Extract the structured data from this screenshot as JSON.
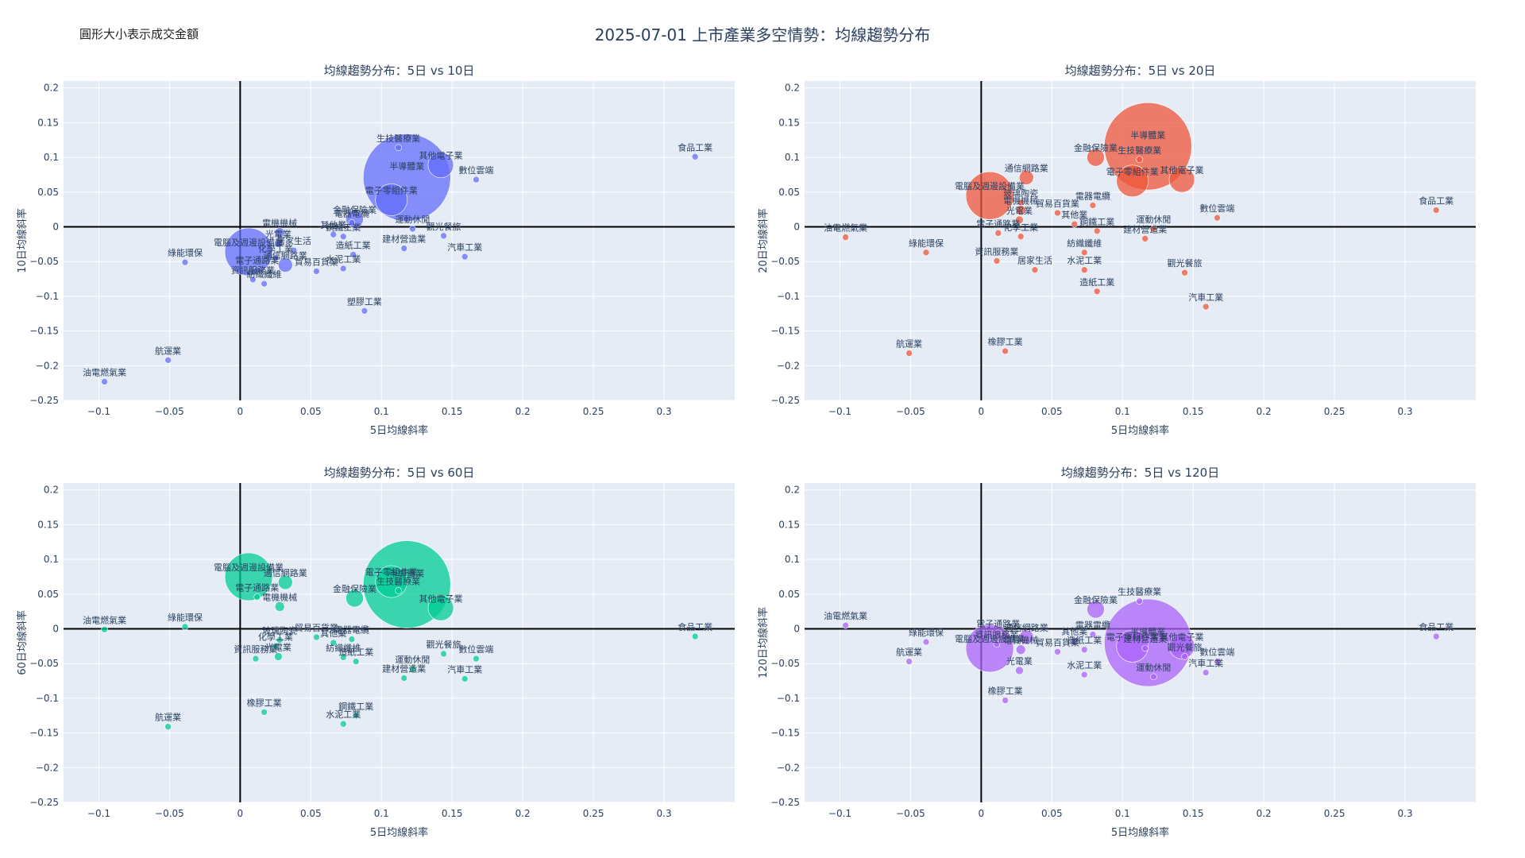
{
  "page": {
    "title": "2025-07-01 上市產業多空情勢：均線趨勢分布",
    "note": "圓形大小表示成交金額"
  },
  "colors": {
    "plot_bg": "#e5ecf6",
    "grid": "#ffffff",
    "axis_zero": "#000000",
    "text": "#2a3f5f",
    "series": [
      "#636efa",
      "#ef553b",
      "#00cc96",
      "#ab63fa"
    ]
  },
  "chart_data": [
    {
      "type": "scatter",
      "title": "均線趨勢分布：5日 vs 10日",
      "xlabel": "5日均線斜率",
      "ylabel": "10日均線斜率",
      "xlim": [
        -0.125,
        0.35
      ],
      "ylim": [
        -0.25,
        0.21
      ],
      "xticks": [
        -0.1,
        -0.05,
        0,
        0.05,
        0.1,
        0.15,
        0.2,
        0.25,
        0.3
      ],
      "yticks": [
        -0.25,
        -0.2,
        -0.15,
        -0.1,
        -0.05,
        0,
        0.05,
        0.1,
        0.15,
        0.2
      ],
      "grid": true,
      "color": "#636efa",
      "points": [
        {
          "label": "半導體業",
          "x": 0.118,
          "y": 0.071,
          "size": 55
        },
        {
          "label": "電子零組件業",
          "x": 0.107,
          "y": 0.039,
          "size": 20
        },
        {
          "label": "電腦及週邊設備業",
          "x": 0.006,
          "y": -0.036,
          "size": 30
        },
        {
          "label": "其他電子業",
          "x": 0.142,
          "y": 0.089,
          "size": 16
        },
        {
          "label": "生技醫療業",
          "x": 0.112,
          "y": 0.114,
          "size": 4
        },
        {
          "label": "金融保險業",
          "x": 0.081,
          "y": 0.011,
          "size": 11
        },
        {
          "label": "數位雲端",
          "x": 0.167,
          "y": 0.068,
          "size": 4
        },
        {
          "label": "食品工業",
          "x": 0.322,
          "y": 0.101,
          "size": 4
        },
        {
          "label": "電機機械",
          "x": 0.028,
          "y": -0.008,
          "size": 6
        },
        {
          "label": "電器電纜",
          "x": 0.079,
          "y": 0.006,
          "size": 4
        },
        {
          "label": "其他業",
          "x": 0.066,
          "y": -0.011,
          "size": 4
        },
        {
          "label": "鋼鐵工業",
          "x": 0.073,
          "y": -0.014,
          "size": 4
        },
        {
          "label": "運動休閒",
          "x": 0.122,
          "y": -0.003,
          "size": 4
        },
        {
          "label": "觀光餐旅",
          "x": 0.144,
          "y": -0.013,
          "size": 4
        },
        {
          "label": "建材營造業",
          "x": 0.116,
          "y": -0.031,
          "size": 4
        },
        {
          "label": "汽車工業",
          "x": 0.159,
          "y": -0.043,
          "size": 4
        },
        {
          "label": "造紙工業",
          "x": 0.08,
          "y": -0.04,
          "size": 4
        },
        {
          "label": "水泥工業",
          "x": 0.073,
          "y": -0.06,
          "size": 4
        },
        {
          "label": "貿易百貨業",
          "x": 0.054,
          "y": -0.064,
          "size": 4
        },
        {
          "label": "通信網路業",
          "x": 0.032,
          "y": -0.055,
          "size": 9
        },
        {
          "label": "光電業",
          "x": 0.027,
          "y": -0.024,
          "size": 5
        },
        {
          "label": "居家生活",
          "x": 0.038,
          "y": -0.034,
          "size": 4
        },
        {
          "label": "資訊服務業",
          "x": 0.009,
          "y": -0.076,
          "size": 4
        },
        {
          "label": "電子通路業",
          "x": 0.012,
          "y": -0.062,
          "size": 4
        },
        {
          "label": "紡織纖維",
          "x": 0.017,
          "y": -0.082,
          "size": 4
        },
        {
          "label": "化學工業",
          "x": 0.025,
          "y": -0.045,
          "size": 4
        },
        {
          "label": "塑膠工業",
          "x": 0.088,
          "y": -0.121,
          "size": 4
        },
        {
          "label": "綠能環保",
          "x": -0.039,
          "y": -0.051,
          "size": 4
        },
        {
          "label": "航運業",
          "x": -0.051,
          "y": -0.192,
          "size": 4
        },
        {
          "label": "油電燃氣業",
          "x": -0.096,
          "y": -0.223,
          "size": 4
        }
      ]
    },
    {
      "type": "scatter",
      "title": "均線趨勢分布：5日 vs 20日",
      "xlabel": "5日均線斜率",
      "ylabel": "20日均線斜率",
      "xlim": [
        -0.125,
        0.35
      ],
      "ylim": [
        -0.25,
        0.21
      ],
      "xticks": [
        -0.1,
        -0.05,
        0,
        0.05,
        0.1,
        0.15,
        0.2,
        0.25,
        0.3
      ],
      "yticks": [
        -0.25,
        -0.2,
        -0.15,
        -0.1,
        -0.05,
        0,
        0.05,
        0.1,
        0.15,
        0.2
      ],
      "grid": true,
      "color": "#ef553b",
      "points": [
        {
          "label": "半導體業",
          "x": 0.118,
          "y": 0.116,
          "size": 55
        },
        {
          "label": "電子零組件業",
          "x": 0.107,
          "y": 0.066,
          "size": 20
        },
        {
          "label": "電腦及週邊設備業",
          "x": 0.006,
          "y": 0.045,
          "size": 30
        },
        {
          "label": "其他電子業",
          "x": 0.142,
          "y": 0.068,
          "size": 16
        },
        {
          "label": "生技醫療業",
          "x": 0.112,
          "y": 0.097,
          "size": 4
        },
        {
          "label": "金融保險業",
          "x": 0.081,
          "y": 0.1,
          "size": 11
        },
        {
          "label": "通信網路業",
          "x": 0.032,
          "y": 0.071,
          "size": 9
        },
        {
          "label": "數位雲端",
          "x": 0.167,
          "y": 0.013,
          "size": 4
        },
        {
          "label": "食品工業",
          "x": 0.322,
          "y": 0.024,
          "size": 4
        },
        {
          "label": "電器電纜",
          "x": 0.079,
          "y": 0.031,
          "size": 4
        },
        {
          "label": "玻璃陶瓷",
          "x": 0.028,
          "y": 0.035,
          "size": 4
        },
        {
          "label": "電機機械",
          "x": 0.028,
          "y": 0.024,
          "size": 6
        },
        {
          "label": "貿易百貨業",
          "x": 0.054,
          "y": 0.02,
          "size": 4
        },
        {
          "label": "光電業",
          "x": 0.027,
          "y": 0.01,
          "size": 5
        },
        {
          "label": "其他業",
          "x": 0.066,
          "y": 0.004,
          "size": 4
        },
        {
          "label": "鋼鐵工業",
          "x": 0.082,
          "y": -0.006,
          "size": 4
        },
        {
          "label": "運動休閒",
          "x": 0.122,
          "y": -0.003,
          "size": 4
        },
        {
          "label": "建材營造業",
          "x": 0.116,
          "y": -0.017,
          "size": 4
        },
        {
          "label": "電子通路業",
          "x": 0.012,
          "y": -0.009,
          "size": 4
        },
        {
          "label": "化學工業",
          "x": 0.028,
          "y": -0.014,
          "size": 4
        },
        {
          "label": "紡織纖維",
          "x": 0.073,
          "y": -0.037,
          "size": 4
        },
        {
          "label": "資訊服務業",
          "x": 0.011,
          "y": -0.049,
          "size": 4
        },
        {
          "label": "居家生活",
          "x": 0.038,
          "y": -0.062,
          "size": 4
        },
        {
          "label": "水泥工業",
          "x": 0.073,
          "y": -0.062,
          "size": 4
        },
        {
          "label": "觀光餐旅",
          "x": 0.144,
          "y": -0.066,
          "size": 4
        },
        {
          "label": "造紙工業",
          "x": 0.082,
          "y": -0.093,
          "size": 4
        },
        {
          "label": "汽車工業",
          "x": 0.159,
          "y": -0.115,
          "size": 4
        },
        {
          "label": "綠能環保",
          "x": -0.039,
          "y": -0.037,
          "size": 4
        },
        {
          "label": "油電燃氣業",
          "x": -0.096,
          "y": -0.015,
          "size": 4
        },
        {
          "label": "航運業",
          "x": -0.051,
          "y": -0.182,
          "size": 4
        },
        {
          "label": "橡膠工業",
          "x": 0.017,
          "y": -0.179,
          "size": 4
        }
      ]
    },
    {
      "type": "scatter",
      "title": "均線趨勢分布：5日 vs 60日",
      "xlabel": "5日均線斜率",
      "ylabel": "60日均線斜率",
      "xlim": [
        -0.125,
        0.35
      ],
      "ylim": [
        -0.25,
        0.21
      ],
      "xticks": [
        -0.1,
        -0.05,
        0,
        0.05,
        0.1,
        0.15,
        0.2,
        0.25,
        0.3
      ],
      "yticks": [
        -0.25,
        -0.2,
        -0.15,
        -0.1,
        -0.05,
        0,
        0.05,
        0.1,
        0.15,
        0.2
      ],
      "grid": true,
      "color": "#00cc96",
      "points": [
        {
          "label": "半導體業",
          "x": 0.118,
          "y": 0.064,
          "size": 55
        },
        {
          "label": "電子零組件業",
          "x": 0.107,
          "y": 0.068,
          "size": 20
        },
        {
          "label": "電腦及週邊設備業",
          "x": 0.006,
          "y": 0.075,
          "size": 30
        },
        {
          "label": "其他電子業",
          "x": 0.142,
          "y": 0.03,
          "size": 16
        },
        {
          "label": "生技醫療業",
          "x": 0.112,
          "y": 0.055,
          "size": 4
        },
        {
          "label": "金融保險業",
          "x": 0.081,
          "y": 0.044,
          "size": 11
        },
        {
          "label": "通信網路業",
          "x": 0.032,
          "y": 0.067,
          "size": 9
        },
        {
          "label": "電子通路業",
          "x": 0.012,
          "y": 0.046,
          "size": 4
        },
        {
          "label": "電機機械",
          "x": 0.028,
          "y": 0.032,
          "size": 6
        },
        {
          "label": "食品工業",
          "x": 0.322,
          "y": -0.011,
          "size": 4
        },
        {
          "label": "綠能環保",
          "x": -0.039,
          "y": 0.003,
          "size": 4
        },
        {
          "label": "油電燃氣業",
          "x": -0.096,
          "y": -0.001,
          "size": 4
        },
        {
          "label": "貿易百貨業",
          "x": 0.054,
          "y": -0.012,
          "size": 4
        },
        {
          "label": "電器電纜",
          "x": 0.079,
          "y": -0.015,
          "size": 4
        },
        {
          "label": "其他業",
          "x": 0.066,
          "y": -0.02,
          "size": 4
        },
        {
          "label": "玻璃陶瓷",
          "x": 0.028,
          "y": -0.016,
          "size": 4
        },
        {
          "label": "化學工業",
          "x": 0.025,
          "y": -0.025,
          "size": 4
        },
        {
          "label": "光電業",
          "x": 0.027,
          "y": -0.04,
          "size": 5
        },
        {
          "label": "資訊服務業",
          "x": 0.011,
          "y": -0.043,
          "size": 4
        },
        {
          "label": "紡織纖維",
          "x": 0.073,
          "y": -0.041,
          "size": 4
        },
        {
          "label": "造紙工業",
          "x": 0.082,
          "y": -0.047,
          "size": 4
        },
        {
          "label": "觀光餐旅",
          "x": 0.144,
          "y": -0.036,
          "size": 4
        },
        {
          "label": "數位雲端",
          "x": 0.167,
          "y": -0.043,
          "size": 4
        },
        {
          "label": "運動休閒",
          "x": 0.122,
          "y": -0.058,
          "size": 4
        },
        {
          "label": "建材營造業",
          "x": 0.116,
          "y": -0.071,
          "size": 4
        },
        {
          "label": "汽車工業",
          "x": 0.159,
          "y": -0.072,
          "size": 4
        },
        {
          "label": "橡膠工業",
          "x": 0.017,
          "y": -0.12,
          "size": 4
        },
        {
          "label": "鋼鐵工業",
          "x": 0.082,
          "y": -0.125,
          "size": 4
        },
        {
          "label": "水泥工業",
          "x": 0.073,
          "y": -0.137,
          "size": 4
        },
        {
          "label": "航運業",
          "x": -0.051,
          "y": -0.141,
          "size": 4
        }
      ]
    },
    {
      "type": "scatter",
      "title": "均線趨勢分布：5日 vs 120日",
      "xlabel": "5日均線斜率",
      "ylabel": "120日均線斜率",
      "xlim": [
        -0.125,
        0.35
      ],
      "ylim": [
        -0.25,
        0.21
      ],
      "xticks": [
        -0.1,
        -0.05,
        0,
        0.05,
        0.1,
        0.15,
        0.2,
        0.25,
        0.3
      ],
      "yticks": [
        -0.25,
        -0.2,
        -0.15,
        -0.1,
        -0.05,
        0,
        0.05,
        0.1,
        0.15,
        0.2
      ],
      "grid": true,
      "color": "#ab63fa",
      "points": [
        {
          "label": "半導體業",
          "x": 0.118,
          "y": -0.02,
          "size": 55
        },
        {
          "label": "電子零組件業",
          "x": 0.107,
          "y": -0.025,
          "size": 20
        },
        {
          "label": "電腦及週邊設備業",
          "x": 0.006,
          "y": -0.028,
          "size": 30
        },
        {
          "label": "其他電子業",
          "x": 0.142,
          "y": -0.025,
          "size": 16
        },
        {
          "label": "生技醫療業",
          "x": 0.112,
          "y": 0.04,
          "size": 4
        },
        {
          "label": "金融保險業",
          "x": 0.081,
          "y": 0.028,
          "size": 11
        },
        {
          "label": "食品工業",
          "x": 0.322,
          "y": -0.011,
          "size": 4
        },
        {
          "label": "油電燃氣業",
          "x": -0.096,
          "y": 0.005,
          "size": 4
        },
        {
          "label": "綠能環保",
          "x": -0.039,
          "y": -0.019,
          "size": 4
        },
        {
          "label": "航運業",
          "x": -0.051,
          "y": -0.047,
          "size": 4
        },
        {
          "label": "電子通路業",
          "x": 0.012,
          "y": -0.006,
          "size": 4
        },
        {
          "label": "通信網路業",
          "x": 0.032,
          "y": -0.012,
          "size": 9
        },
        {
          "label": "電機機械",
          "x": 0.028,
          "y": -0.03,
          "size": 6
        },
        {
          "label": "資訊服務業",
          "x": 0.011,
          "y": -0.022,
          "size": 4
        },
        {
          "label": "貿易百貨業",
          "x": 0.054,
          "y": -0.033,
          "size": 4
        },
        {
          "label": "其他業",
          "x": 0.066,
          "y": -0.017,
          "size": 4
        },
        {
          "label": "電器電纜",
          "x": 0.079,
          "y": -0.008,
          "size": 4
        },
        {
          "label": "造紙工業",
          "x": 0.073,
          "y": -0.03,
          "size": 4
        },
        {
          "label": "光電業",
          "x": 0.027,
          "y": -0.06,
          "size": 5
        },
        {
          "label": "水泥工業",
          "x": 0.073,
          "y": -0.066,
          "size": 4
        },
        {
          "label": "建材營造業",
          "x": 0.116,
          "y": -0.028,
          "size": 4
        },
        {
          "label": "觀光餐旅",
          "x": 0.144,
          "y": -0.04,
          "size": 4
        },
        {
          "label": "數位雲端",
          "x": 0.167,
          "y": -0.047,
          "size": 4
        },
        {
          "label": "汽車工業",
          "x": 0.159,
          "y": -0.063,
          "size": 4
        },
        {
          "label": "運動休閒",
          "x": 0.122,
          "y": -0.069,
          "size": 4
        },
        {
          "label": "橡膠工業",
          "x": 0.017,
          "y": -0.103,
          "size": 4
        }
      ]
    }
  ]
}
